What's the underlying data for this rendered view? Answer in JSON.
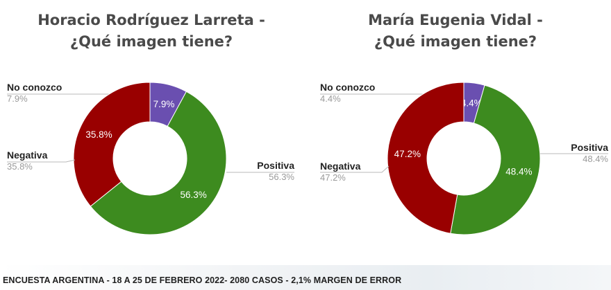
{
  "colors": {
    "positiva": "#3d8b1f",
    "negativa": "#990000",
    "no_conozco": "#6a4fb0"
  },
  "chart_data": [
    {
      "type": "pie",
      "title": [
        "Horacio Rodríguez Larreta -",
        "¿Qué imagen tiene?"
      ],
      "slices": [
        {
          "label": "No conozco",
          "value": 7.9,
          "value_text": "7.9%"
        },
        {
          "label": "Positiva",
          "value": 56.3,
          "value_text": "56.3%"
        },
        {
          "label": "Negativa",
          "value": 35.8,
          "value_text": "35.8%"
        }
      ]
    },
    {
      "type": "pie",
      "title": [
        "María Eugenia Vidal -",
        "¿Qué imagen tiene?"
      ],
      "slices": [
        {
          "label": "No conozco",
          "value": 4.4,
          "value_text": "4.4%"
        },
        {
          "label": "Positiva",
          "value": 48.4,
          "value_text": "48.4%"
        },
        {
          "label": "Negativa",
          "value": 47.2,
          "value_text": "47.2%"
        }
      ]
    }
  ],
  "footer": "ENCUESTA ARGENTINA - 18 A 25 DE FEBRERO 2022- 2080 CASOS - 2,1% MARGEN DE ERROR"
}
